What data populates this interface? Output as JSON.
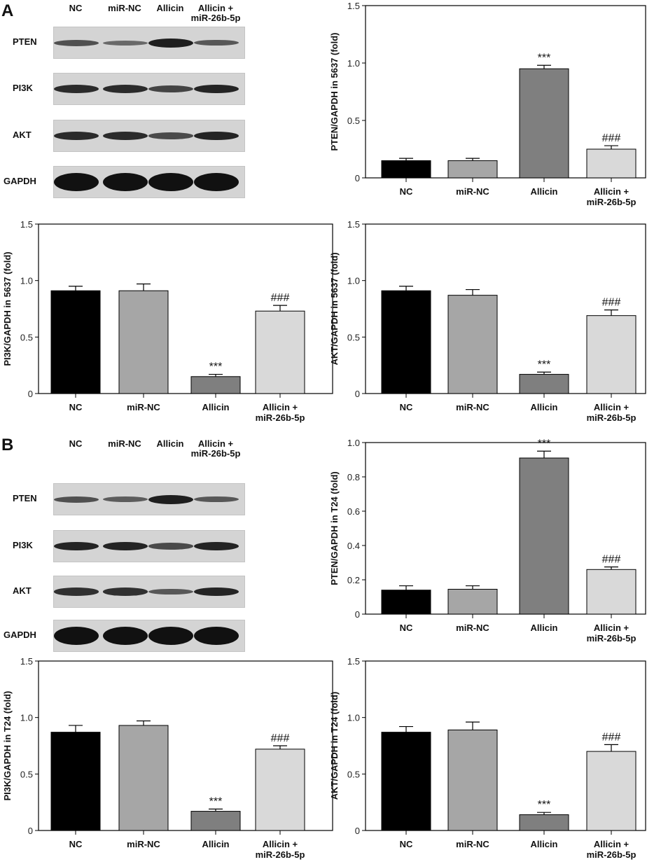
{
  "panels": [
    {
      "letter": "A",
      "lanes": [
        "NC",
        "miR-NC",
        "Allicin",
        "Allicin +\nmiR-26b-5p"
      ],
      "blot_rows": [
        {
          "label": "PTEN",
          "band_intensity": [
            0.5,
            0.3,
            0.9,
            0.45
          ]
        },
        {
          "label": "PI3K",
          "band_intensity": [
            0.8,
            0.8,
            0.6,
            0.85
          ]
        },
        {
          "label": "AKT",
          "band_intensity": [
            0.8,
            0.8,
            0.55,
            0.85
          ]
        },
        {
          "label": "GAPDH",
          "band_intensity": [
            1,
            1,
            1,
            1
          ]
        }
      ]
    },
    {
      "letter": "B",
      "lanes": [
        "NC",
        "miR-NC",
        "Allicin",
        "Allicin +\nmiR-26b-5p"
      ],
      "blot_rows": [
        {
          "label": "PTEN",
          "band_intensity": [
            0.5,
            0.4,
            0.9,
            0.45
          ]
        },
        {
          "label": "PI3K",
          "band_intensity": [
            0.85,
            0.85,
            0.55,
            0.85
          ]
        },
        {
          "label": "AKT",
          "band_intensity": [
            0.75,
            0.75,
            0.45,
            0.85
          ]
        },
        {
          "label": "GAPDH",
          "band_intensity": [
            1,
            1,
            1,
            1
          ]
        }
      ]
    }
  ],
  "chart_data": [
    {
      "type": "bar",
      "title": "",
      "ylabel": "PTEN/GAPDH in 5637 (fold)",
      "categories": [
        "NC",
        "miR-NC",
        "Allicin",
        "Allicin +\nmiR-26b-5p"
      ],
      "values": [
        0.15,
        0.15,
        0.95,
        0.25
      ],
      "errors": [
        0.02,
        0.02,
        0.03,
        0.03
      ],
      "annotations": [
        "",
        "",
        "***",
        "###"
      ],
      "ylim": [
        0,
        1.5
      ],
      "yticks": [
        0,
        0.5,
        1.0,
        1.5
      ],
      "ytick_labels": [
        "0",
        "0.5",
        "1.0",
        "1.5"
      ],
      "colors": [
        "#000000",
        "#a6a6a6",
        "#7f7f7f",
        "#d9d9d9"
      ]
    },
    {
      "type": "bar",
      "title": "",
      "ylabel": "PI3K/GAPDH in 5637 (fold)",
      "categories": [
        "NC",
        "miR-NC",
        "Allicin",
        "Allicin +\nmiR-26b-5p"
      ],
      "values": [
        0.91,
        0.91,
        0.15,
        0.73
      ],
      "errors": [
        0.04,
        0.06,
        0.02,
        0.05
      ],
      "annotations": [
        "",
        "",
        "***",
        "###"
      ],
      "ylim": [
        0,
        1.5
      ],
      "yticks": [
        0,
        0.5,
        1.0,
        1.5
      ],
      "ytick_labels": [
        "0",
        "0.5",
        "1.0",
        "1.5"
      ],
      "colors": [
        "#000000",
        "#a6a6a6",
        "#7f7f7f",
        "#d9d9d9"
      ]
    },
    {
      "type": "bar",
      "title": "",
      "ylabel": "AKT/GAPDH in 5637 (fold)",
      "categories": [
        "NC",
        "miR-NC",
        "Allicin",
        "Allicin +\nmiR-26b-5p"
      ],
      "values": [
        0.91,
        0.87,
        0.17,
        0.69
      ],
      "errors": [
        0.04,
        0.05,
        0.02,
        0.05
      ],
      "annotations": [
        "",
        "",
        "***",
        "###"
      ],
      "ylim": [
        0,
        1.5
      ],
      "yticks": [
        0,
        0.5,
        1.0,
        1.5
      ],
      "ytick_labels": [
        "0",
        "0.5",
        "1.0",
        "1.5"
      ],
      "colors": [
        "#000000",
        "#a6a6a6",
        "#7f7f7f",
        "#d9d9d9"
      ]
    },
    {
      "type": "bar",
      "title": "",
      "ylabel": "PTEN/GAPDH in T24 (fold)",
      "categories": [
        "NC",
        "miR-NC",
        "Allicin",
        "Allicin +\nmiR-26b-5p"
      ],
      "values": [
        0.14,
        0.145,
        0.91,
        0.26
      ],
      "errors": [
        0.025,
        0.02,
        0.04,
        0.015
      ],
      "annotations": [
        "",
        "",
        "***",
        "###"
      ],
      "ylim": [
        0,
        1.0
      ],
      "yticks": [
        0,
        0.2,
        0.4,
        0.6,
        0.8,
        1.0
      ],
      "ytick_labels": [
        "0",
        "0.2",
        "0.4",
        "0.6",
        "0.8",
        "1.0"
      ],
      "colors": [
        "#000000",
        "#a6a6a6",
        "#7f7f7f",
        "#d9d9d9"
      ]
    },
    {
      "type": "bar",
      "title": "",
      "ylabel": "PI3K/GAPDH in T24 (fold)",
      "categories": [
        "NC",
        "miR-NC",
        "Allicin",
        "Allicin +\nmiR-26b-5p"
      ],
      "values": [
        0.87,
        0.93,
        0.17,
        0.72
      ],
      "errors": [
        0.06,
        0.04,
        0.02,
        0.03
      ],
      "annotations": [
        "",
        "",
        "***",
        "###"
      ],
      "ylim": [
        0,
        1.5
      ],
      "yticks": [
        0,
        0.5,
        1.0,
        1.5
      ],
      "ytick_labels": [
        "0",
        "0.5",
        "1.0",
        "1.5"
      ],
      "colors": [
        "#000000",
        "#a6a6a6",
        "#7f7f7f",
        "#d9d9d9"
      ]
    },
    {
      "type": "bar",
      "title": "",
      "ylabel": "AKT/GAPDH in T24 (fold)",
      "categories": [
        "NC",
        "miR-NC",
        "Allicin",
        "Allicin +\nmiR-26b-5p"
      ],
      "values": [
        0.87,
        0.89,
        0.14,
        0.7
      ],
      "errors": [
        0.05,
        0.07,
        0.02,
        0.06
      ],
      "annotations": [
        "",
        "",
        "***",
        "###"
      ],
      "ylim": [
        0,
        1.5
      ],
      "yticks": [
        0,
        0.5,
        1.0,
        1.5
      ],
      "ytick_labels": [
        "0",
        "0.5",
        "1.0",
        "1.5"
      ],
      "colors": [
        "#000000",
        "#a6a6a6",
        "#7f7f7f",
        "#d9d9d9"
      ]
    }
  ]
}
